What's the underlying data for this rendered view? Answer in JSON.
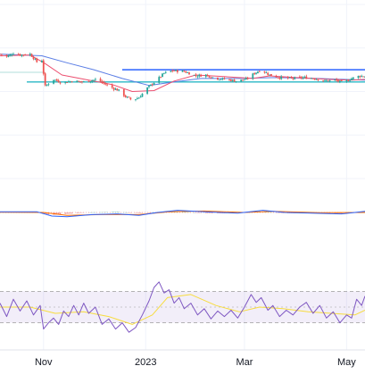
{
  "chart_data": {
    "type": "candlestick",
    "time_axis": {
      "start": "2022-10-06",
      "end": "2023-05-12",
      "tick_labels": [
        {
          "label": "Nov",
          "date": "2022-11-01"
        },
        {
          "label": "2023",
          "date": "2023-01-01"
        },
        {
          "label": "Mar",
          "date": "2023-03-01"
        },
        {
          "label": "May",
          "date": "2023-05-01"
        }
      ]
    },
    "price_panel": {
      "ylim": [
        0,
        100
      ],
      "candle_path": [
        [
          "2022-10-06",
          71.5
        ],
        [
          "2022-10-10",
          70.0
        ],
        [
          "2022-10-14",
          72.0
        ],
        [
          "2022-10-18",
          71.0
        ],
        [
          "2022-10-24",
          71.5
        ],
        [
          "2022-10-28",
          67.0
        ],
        [
          "2022-10-31",
          68.0
        ],
        [
          "2022-11-02",
          53.0
        ],
        [
          "2022-11-07",
          57.0
        ],
        [
          "2022-11-12",
          55.0
        ],
        [
          "2022-11-18",
          56.0
        ],
        [
          "2022-11-25",
          55.5
        ],
        [
          "2022-12-03",
          57.0
        ],
        [
          "2022-12-10",
          53.0
        ],
        [
          "2022-12-16",
          50.5
        ],
        [
          "2022-12-20",
          47.0
        ],
        [
          "2022-12-24",
          45.0
        ],
        [
          "2022-12-28",
          46.5
        ],
        [
          "2023-01-02",
          52.0
        ],
        [
          "2023-01-07",
          56.0
        ],
        [
          "2023-01-12",
          60.5
        ],
        [
          "2023-01-17",
          62.0
        ],
        [
          "2023-01-24",
          61.5
        ],
        [
          "2023-01-31",
          59.0
        ],
        [
          "2023-02-06",
          59.5
        ],
        [
          "2023-02-12",
          57.5
        ],
        [
          "2023-02-18",
          57.0
        ],
        [
          "2023-02-24",
          56.0
        ],
        [
          "2023-03-02",
          57.0
        ],
        [
          "2023-03-07",
          60.5
        ],
        [
          "2023-03-11",
          62.5
        ],
        [
          "2023-03-16",
          59.5
        ],
        [
          "2023-03-22",
          58.0
        ],
        [
          "2023-03-29",
          57.5
        ],
        [
          "2023-04-06",
          58.0
        ],
        [
          "2023-04-12",
          57.5
        ],
        [
          "2023-04-18",
          56.0
        ],
        [
          "2023-04-24",
          56.5
        ],
        [
          "2023-04-29",
          55.0
        ],
        [
          "2023-05-04",
          57.5
        ],
        [
          "2023-05-09",
          59.0
        ],
        [
          "2023-05-12",
          58.5
        ]
      ],
      "ma_fast": [
        [
          "2022-10-06",
          70.5
        ],
        [
          "2022-10-24",
          71.0
        ],
        [
          "2022-11-02",
          66.0
        ],
        [
          "2022-11-12",
          59.5
        ],
        [
          "2022-11-28",
          56.5
        ],
        [
          "2022-12-12",
          54.0
        ],
        [
          "2022-12-24",
          50.0
        ],
        [
          "2023-01-06",
          50.5
        ],
        [
          "2023-01-18",
          56.0
        ],
        [
          "2023-01-31",
          59.5
        ],
        [
          "2023-02-18",
          58.5
        ],
        [
          "2023-03-06",
          57.5
        ],
        [
          "2023-03-16",
          59.0
        ],
        [
          "2023-04-01",
          58.0
        ],
        [
          "2023-04-20",
          57.0
        ],
        [
          "2023-05-04",
          56.5
        ],
        [
          "2023-05-12",
          57.0
        ]
      ],
      "ma_slow": [
        [
          "2022-10-06",
          71.5
        ],
        [
          "2022-10-31",
          70.5
        ],
        [
          "2022-11-15",
          66.5
        ],
        [
          "2022-12-01",
          62.5
        ],
        [
          "2022-12-18",
          57.5
        ],
        [
          "2023-01-03",
          53.5
        ],
        [
          "2023-01-18",
          55.5
        ],
        [
          "2023-02-03",
          57.5
        ],
        [
          "2023-02-25",
          57.5
        ],
        [
          "2023-03-20",
          58.0
        ],
        [
          "2023-04-14",
          57.5
        ],
        [
          "2023-05-12",
          56.5
        ]
      ],
      "lines": {
        "resistance": 62.5,
        "support": 55.5,
        "reference": 61.0
      }
    },
    "macd_panel": {
      "ylim": [
        -10,
        10
      ],
      "macd": [
        [
          "2022-10-06",
          0.5
        ],
        [
          "2022-10-28",
          0.5
        ],
        [
          "2022-11-06",
          -2.5
        ],
        [
          "2022-11-15",
          -3.0
        ],
        [
          "2022-11-30",
          -1.5
        ],
        [
          "2022-12-15",
          -1.0
        ],
        [
          "2022-12-28",
          -2.0
        ],
        [
          "2023-01-08",
          0.0
        ],
        [
          "2023-01-20",
          1.5
        ],
        [
          "2023-02-05",
          0.5
        ],
        [
          "2023-02-25",
          -0.5
        ],
        [
          "2023-03-12",
          1.5
        ],
        [
          "2023-03-25",
          0.0
        ],
        [
          "2023-04-10",
          -0.5
        ],
        [
          "2023-04-28",
          -1.0
        ],
        [
          "2023-05-12",
          0.8
        ]
      ],
      "signal": [
        [
          "2022-10-06",
          0.2
        ],
        [
          "2022-11-01",
          0.0
        ],
        [
          "2022-11-15",
          -2.0
        ],
        [
          "2022-12-05",
          -1.5
        ],
        [
          "2022-12-28",
          -1.5
        ],
        [
          "2023-01-15",
          0.5
        ],
        [
          "2023-02-05",
          1.0
        ],
        [
          "2023-03-01",
          0.0
        ],
        [
          "2023-03-18",
          0.8
        ],
        [
          "2023-04-15",
          -0.2
        ],
        [
          "2023-05-12",
          0.0
        ]
      ]
    },
    "rsi_panel": {
      "ylim": [
        0,
        100
      ],
      "upper_band": 70,
      "lower_band": 30,
      "rsi": [
        [
          "2022-10-06",
          55
        ],
        [
          "2022-10-10",
          38
        ],
        [
          "2022-10-14",
          60
        ],
        [
          "2022-10-18",
          45
        ],
        [
          "2022-10-22",
          58
        ],
        [
          "2022-10-26",
          40
        ],
        [
          "2022-10-30",
          52
        ],
        [
          "2022-11-01",
          22
        ],
        [
          "2022-11-04",
          30
        ],
        [
          "2022-11-07",
          36
        ],
        [
          "2022-11-10",
          28
        ],
        [
          "2022-11-13",
          45
        ],
        [
          "2022-11-16",
          38
        ],
        [
          "2022-11-19",
          52
        ],
        [
          "2022-11-22",
          40
        ],
        [
          "2022-11-25",
          55
        ],
        [
          "2022-11-28",
          42
        ],
        [
          "2022-12-02",
          50
        ],
        [
          "2022-12-06",
          28
        ],
        [
          "2022-12-10",
          35
        ],
        [
          "2022-12-14",
          22
        ],
        [
          "2022-12-18",
          30
        ],
        [
          "2022-12-22",
          18
        ],
        [
          "2022-12-26",
          24
        ],
        [
          "2022-12-30",
          40
        ],
        [
          "2023-01-03",
          58
        ],
        [
          "2023-01-06",
          75
        ],
        [
          "2023-01-09",
          82
        ],
        [
          "2023-01-12",
          68
        ],
        [
          "2023-01-15",
          72
        ],
        [
          "2023-01-18",
          55
        ],
        [
          "2023-01-21",
          62
        ],
        [
          "2023-01-24",
          48
        ],
        [
          "2023-01-28",
          55
        ],
        [
          "2023-02-01",
          40
        ],
        [
          "2023-02-05",
          48
        ],
        [
          "2023-02-09",
          35
        ],
        [
          "2023-02-13",
          45
        ],
        [
          "2023-02-17",
          38
        ],
        [
          "2023-02-21",
          46
        ],
        [
          "2023-02-25",
          36
        ],
        [
          "2023-03-01",
          50
        ],
        [
          "2023-03-05",
          66
        ],
        [
          "2023-03-08",
          56
        ],
        [
          "2023-03-11",
          62
        ],
        [
          "2023-03-15",
          46
        ],
        [
          "2023-03-18",
          52
        ],
        [
          "2023-03-22",
          38
        ],
        [
          "2023-03-26",
          46
        ],
        [
          "2023-03-30",
          40
        ],
        [
          "2023-04-03",
          50
        ],
        [
          "2023-04-07",
          56
        ],
        [
          "2023-04-11",
          42
        ],
        [
          "2023-04-15",
          52
        ],
        [
          "2023-04-19",
          36
        ],
        [
          "2023-04-23",
          44
        ],
        [
          "2023-04-27",
          30
        ],
        [
          "2023-05-01",
          40
        ],
        [
          "2023-05-04",
          36
        ],
        [
          "2023-05-07",
          60
        ],
        [
          "2023-05-10",
          52
        ],
        [
          "2023-05-12",
          64
        ]
      ],
      "rsi_ma": [
        [
          "2022-10-06",
          50
        ],
        [
          "2022-10-24",
          50
        ],
        [
          "2022-11-08",
          42
        ],
        [
          "2022-11-25",
          44
        ],
        [
          "2022-12-10",
          38
        ],
        [
          "2022-12-24",
          28
        ],
        [
          "2023-01-05",
          40
        ],
        [
          "2023-01-14",
          62
        ],
        [
          "2023-01-28",
          66
        ],
        [
          "2023-02-12",
          52
        ],
        [
          "2023-02-26",
          44
        ],
        [
          "2023-03-10",
          50
        ],
        [
          "2023-03-24",
          48
        ],
        [
          "2023-04-08",
          44
        ],
        [
          "2023-04-22",
          42
        ],
        [
          "2023-05-06",
          40
        ],
        [
          "2023-05-12",
          46
        ]
      ]
    },
    "colors": {
      "up": "#26a69a",
      "down": "#ef5350",
      "ma_fast": "#ec4f6f",
      "ma_slow": "#5b7ee5",
      "hline_blue": "#2962ff",
      "hline_teal": "#2ab7c4",
      "macd": "#2962ff",
      "signal": "#ff6d00",
      "rsi": "#7e57c2",
      "rsi_ma": "#f7dc3f",
      "rsi_band": "#7e57c2",
      "grid": "#f0f3fa"
    },
    "grid": true
  }
}
